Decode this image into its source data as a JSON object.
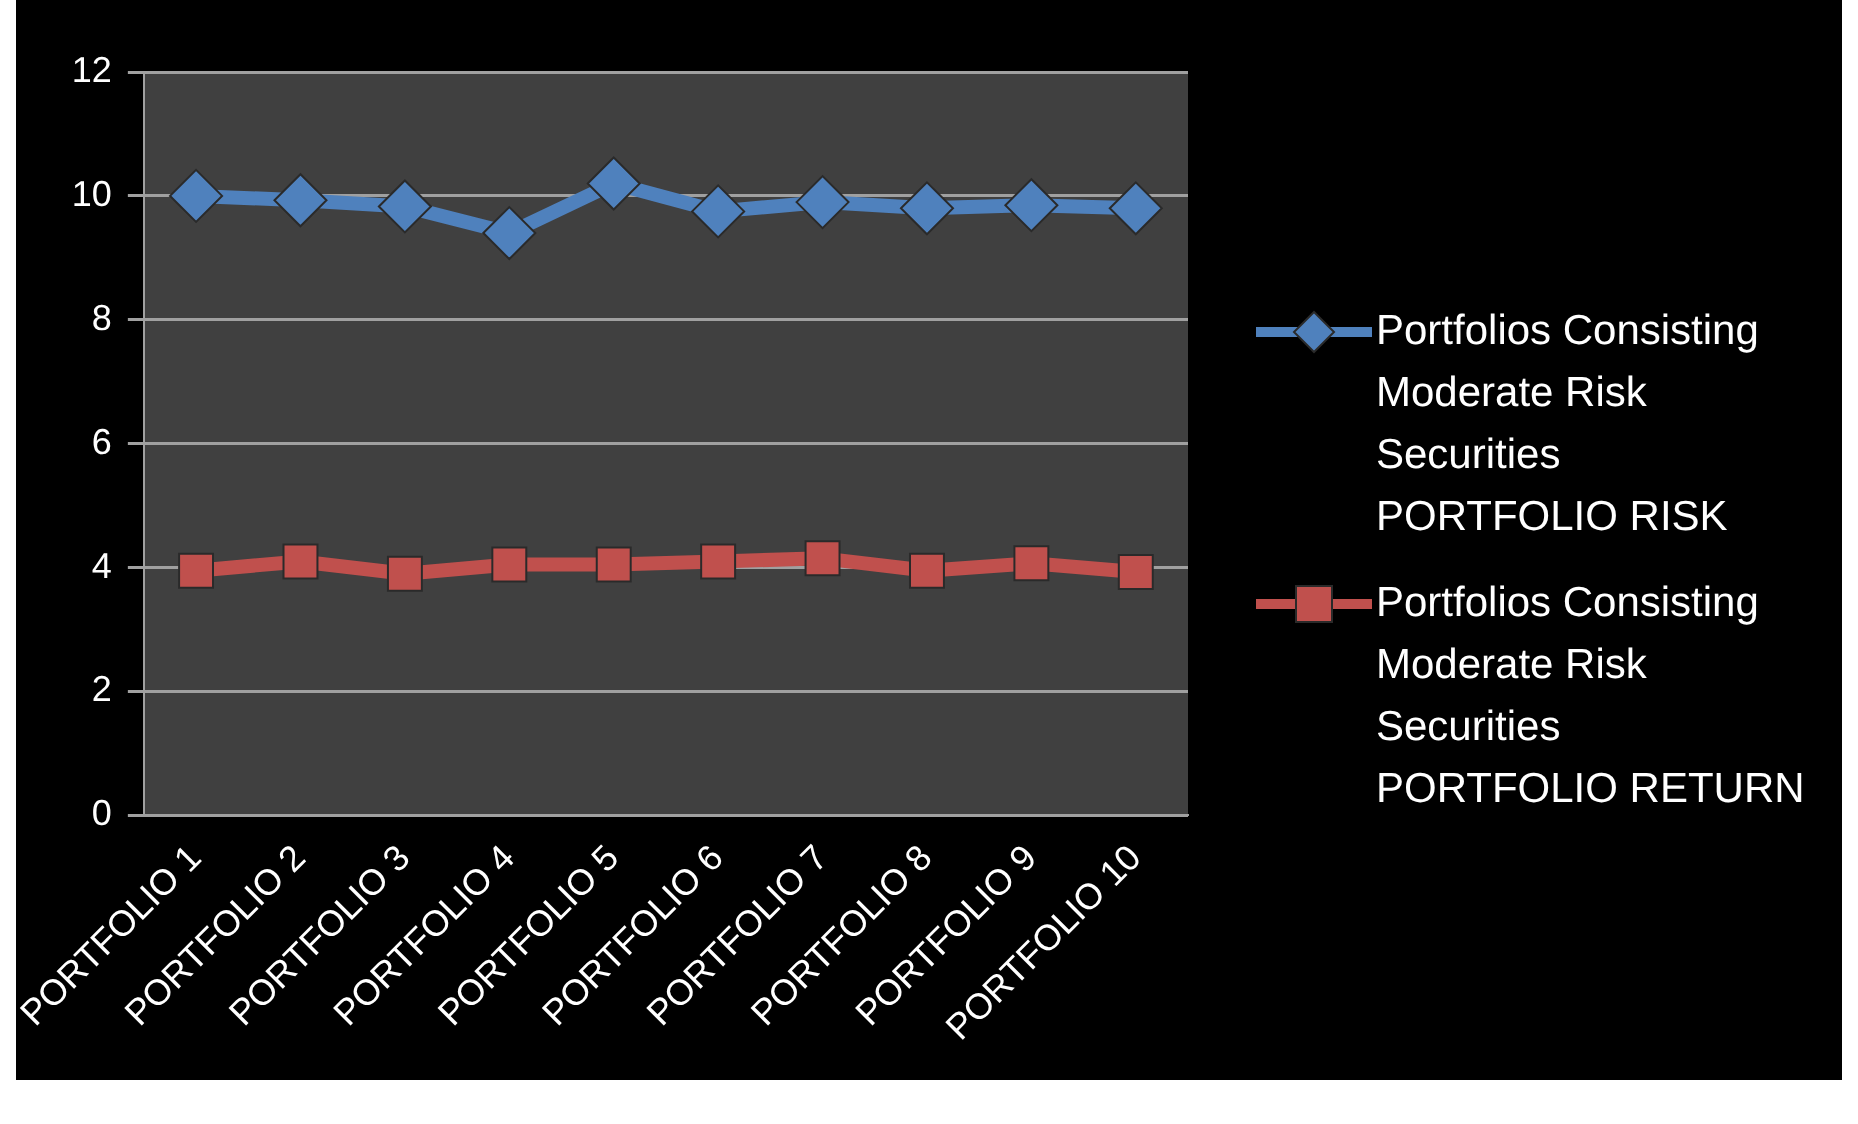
{
  "chart_data": {
    "type": "line",
    "categories": [
      "PORTFOLIO 1",
      "PORTFOLIO 2",
      "PORTFOLIO 3",
      "PORTFOLIO 4",
      "PORTFOLIO 5",
      "PORTFOLIO 6",
      "PORTFOLIO 7",
      "PORTFOLIO 8",
      "PORTFOLIO 9",
      "PORTFOLIO 10"
    ],
    "series": [
      {
        "name": "Portfolios Consisting Moderate Risk Securities PORTFOLIO RISK",
        "color": "#4f81bd",
        "marker": "diamond",
        "values": [
          10.0,
          9.93,
          9.83,
          9.4,
          10.2,
          9.75,
          9.9,
          9.8,
          9.85,
          9.8
        ]
      },
      {
        "name": "Portfolios Consisting Moderate Risk Securities PORTFOLIO RETURN",
        "color": "#c0504d",
        "marker": "square",
        "values": [
          3.95,
          4.1,
          3.9,
          4.05,
          4.05,
          4.1,
          4.15,
          3.95,
          4.07,
          3.93
        ]
      }
    ],
    "ylim": [
      0,
      12
    ],
    "yticks": [
      0,
      2,
      4,
      6,
      8,
      10,
      12
    ],
    "grid": "y",
    "legend": "right",
    "line_style": "solid"
  }
}
